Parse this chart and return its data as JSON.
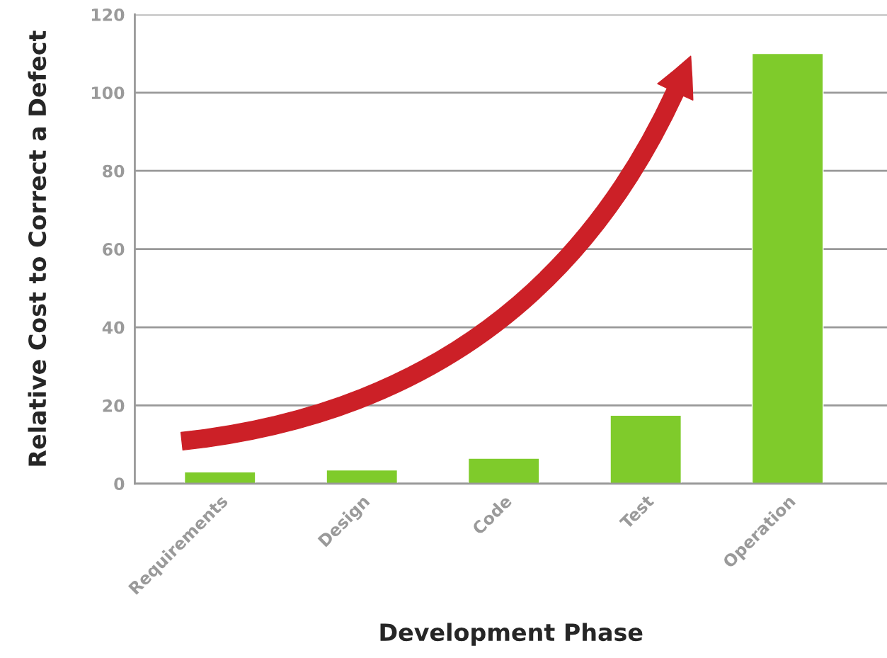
{
  "chart_data": {
    "type": "bar",
    "xlabel": "Development Phase",
    "ylabel": "Relative Cost to Correct a Defect",
    "categories": [
      "Requirements",
      "Design",
      "Code",
      "Test",
      "Operation"
    ],
    "values": [
      3,
      3.5,
      6.5,
      17.5,
      110
    ],
    "color": "#7fcb2b",
    "ylim": [
      0,
      120
    ],
    "yticks": [
      0,
      20,
      40,
      60,
      80,
      100,
      120
    ],
    "grid": "y"
  }
}
